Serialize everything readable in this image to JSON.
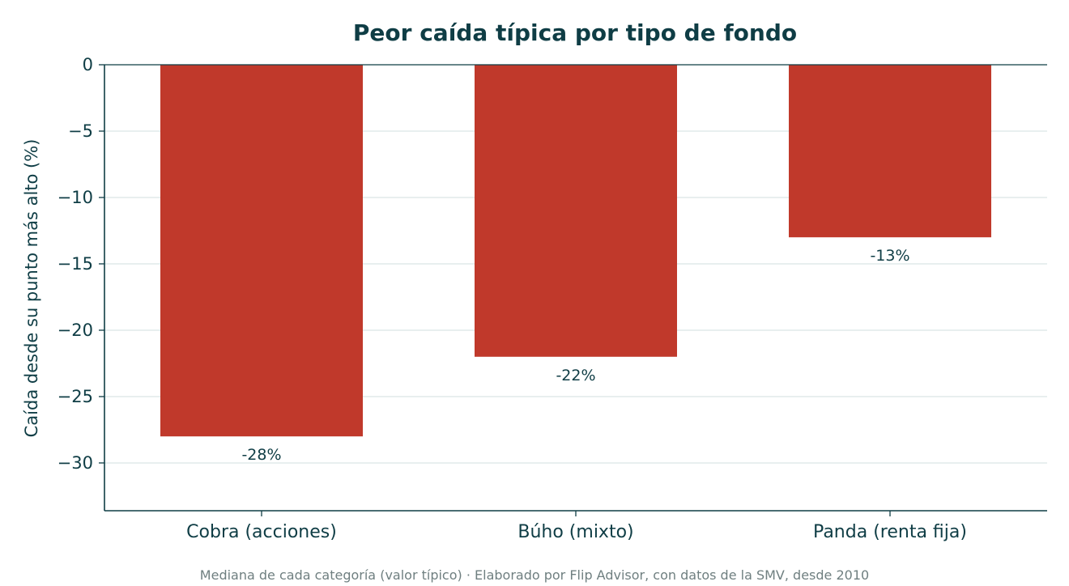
{
  "chart_data": {
    "type": "bar",
    "title": "Peor caída típica por tipo de fondo",
    "xlabel": "",
    "ylabel": "Caída desde su punto más alto (%)",
    "categories": [
      "Cobra (acciones)",
      "Búho (mixto)",
      "Panda (renta fija)"
    ],
    "values": [
      -28,
      -22,
      -13
    ],
    "data_labels": [
      "-28%",
      "-22%",
      "-13%"
    ],
    "ylim": [
      -33.6,
      0
    ],
    "yticks": [
      0,
      -5,
      -10,
      -15,
      -20,
      -25,
      -30
    ],
    "ytick_labels": [
      "0",
      "−5",
      "−10",
      "−15",
      "−20",
      "−25",
      "−30"
    ],
    "grid": "horizontal",
    "caption": "Mediana de cada categoría (valor típico) · Elaborado por Flip Advisor, con datos de la SMV, desde 2010"
  },
  "colors": {
    "bar": "#c0392b",
    "text": "#0f3d45",
    "grid": "#dbe5e5",
    "axis": "#0f3d45",
    "caption": "#6f7f80"
  }
}
